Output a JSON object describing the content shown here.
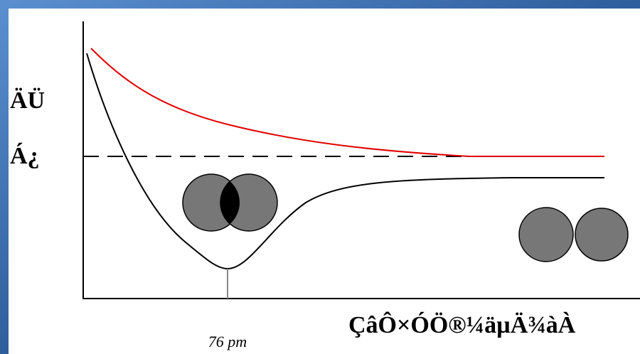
{
  "y_axis_label": {
    "line1": "ÄÜ",
    "line2": "Á¿"
  },
  "x_axis_label": "ÇâÔ×ÓÖ®¼äµÄ¾àÀ",
  "minimum_label": "76 pm"
}
